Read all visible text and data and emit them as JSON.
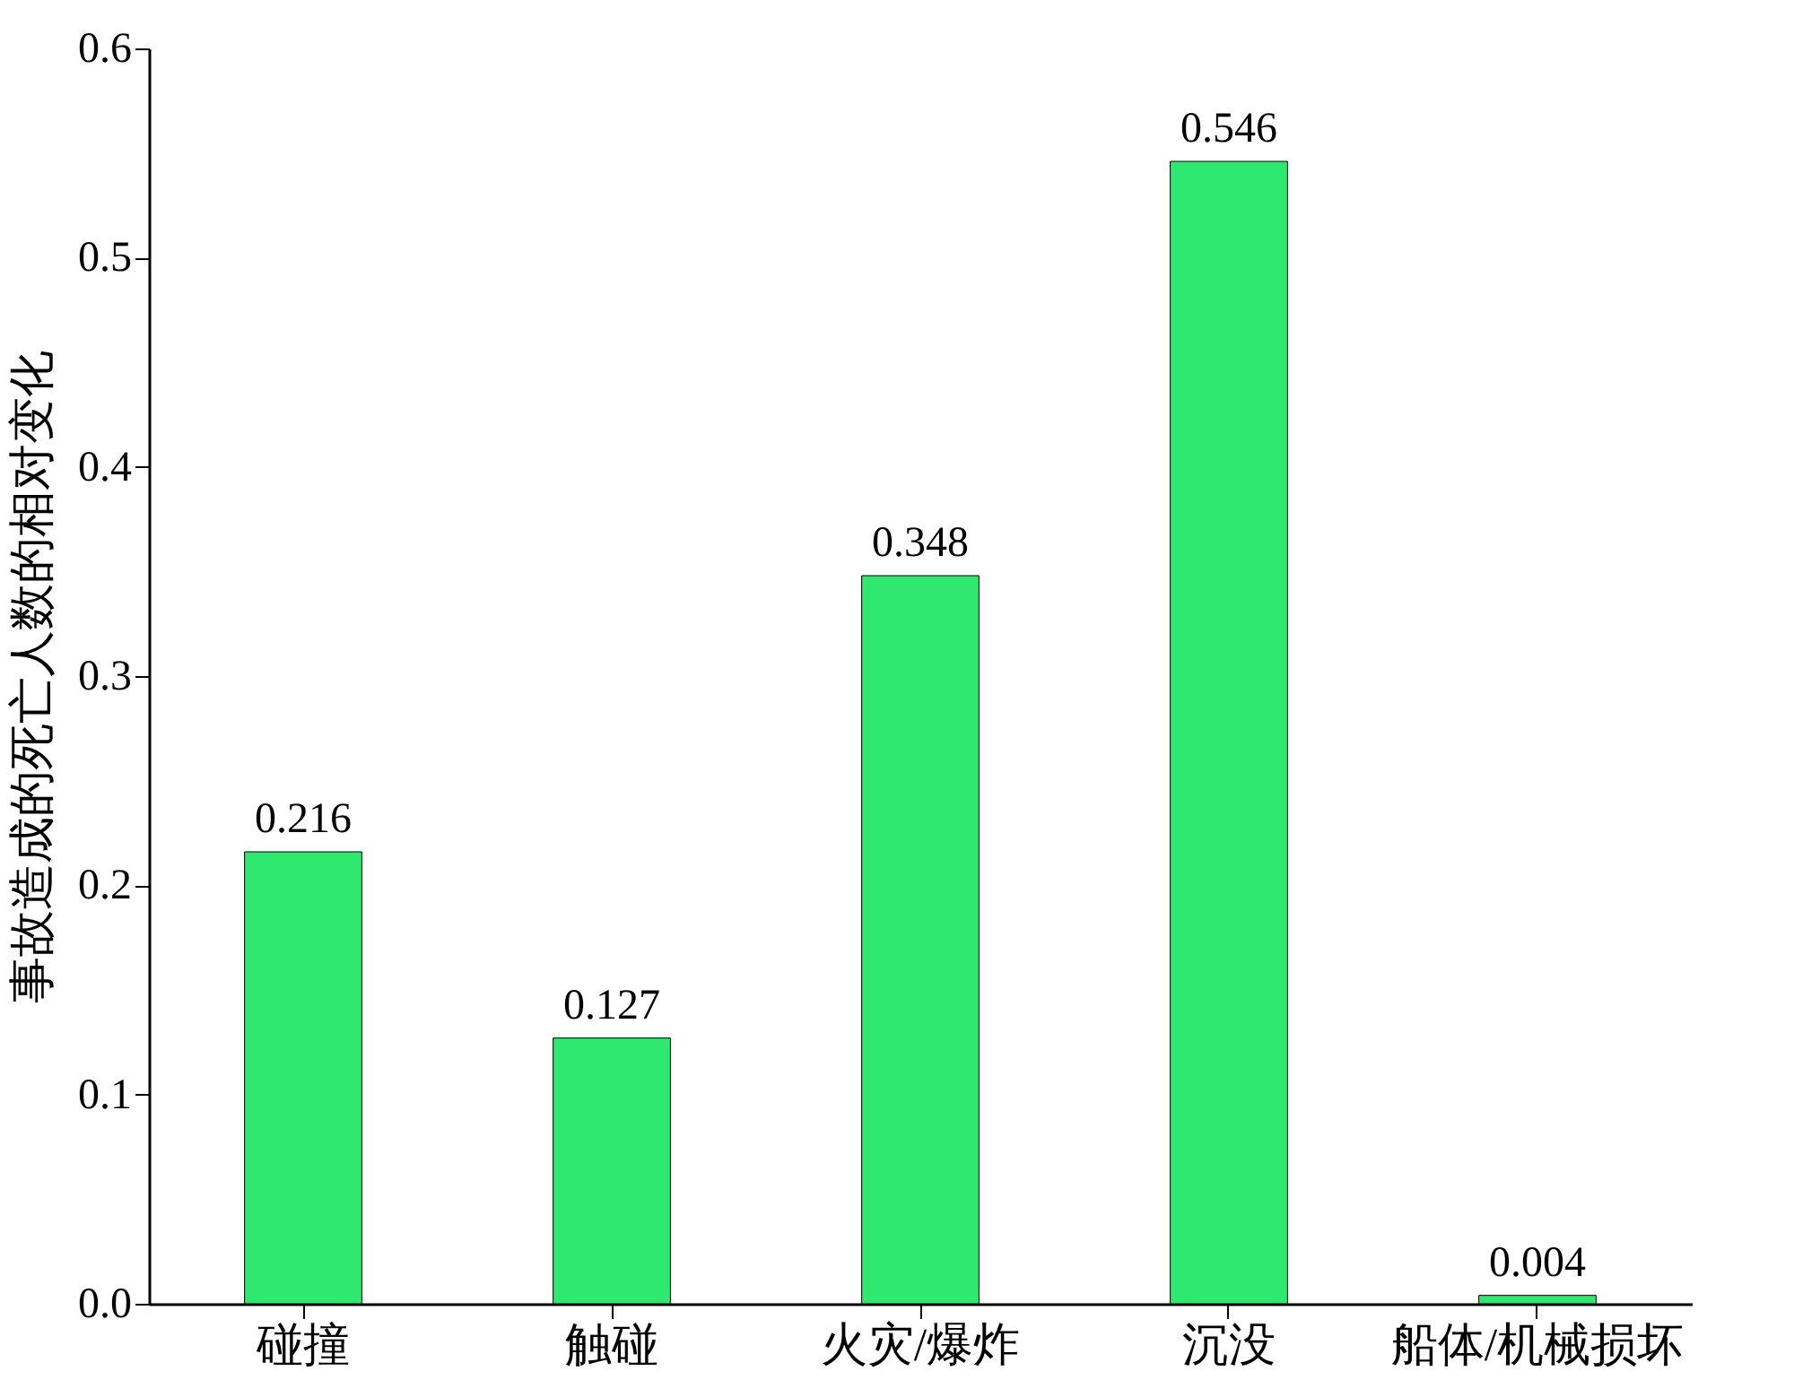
{
  "chart_data": {
    "type": "bar",
    "ylabel": "事故造成的死亡人数的相对变化",
    "categories": [
      "碰撞",
      "触碰",
      "火灾/爆炸",
      "沉没",
      "船体/机械损坏"
    ],
    "values": [
      0.216,
      0.127,
      0.348,
      0.546,
      0.004
    ],
    "color": "#2ee870",
    "ylim": [
      0,
      0.6
    ],
    "yticks": [
      {
        "value": 0,
        "label": "0.0"
      },
      0.1,
      0.2,
      0.3,
      0.4,
      0.5,
      0.6
    ],
    "data_labels": true
  }
}
